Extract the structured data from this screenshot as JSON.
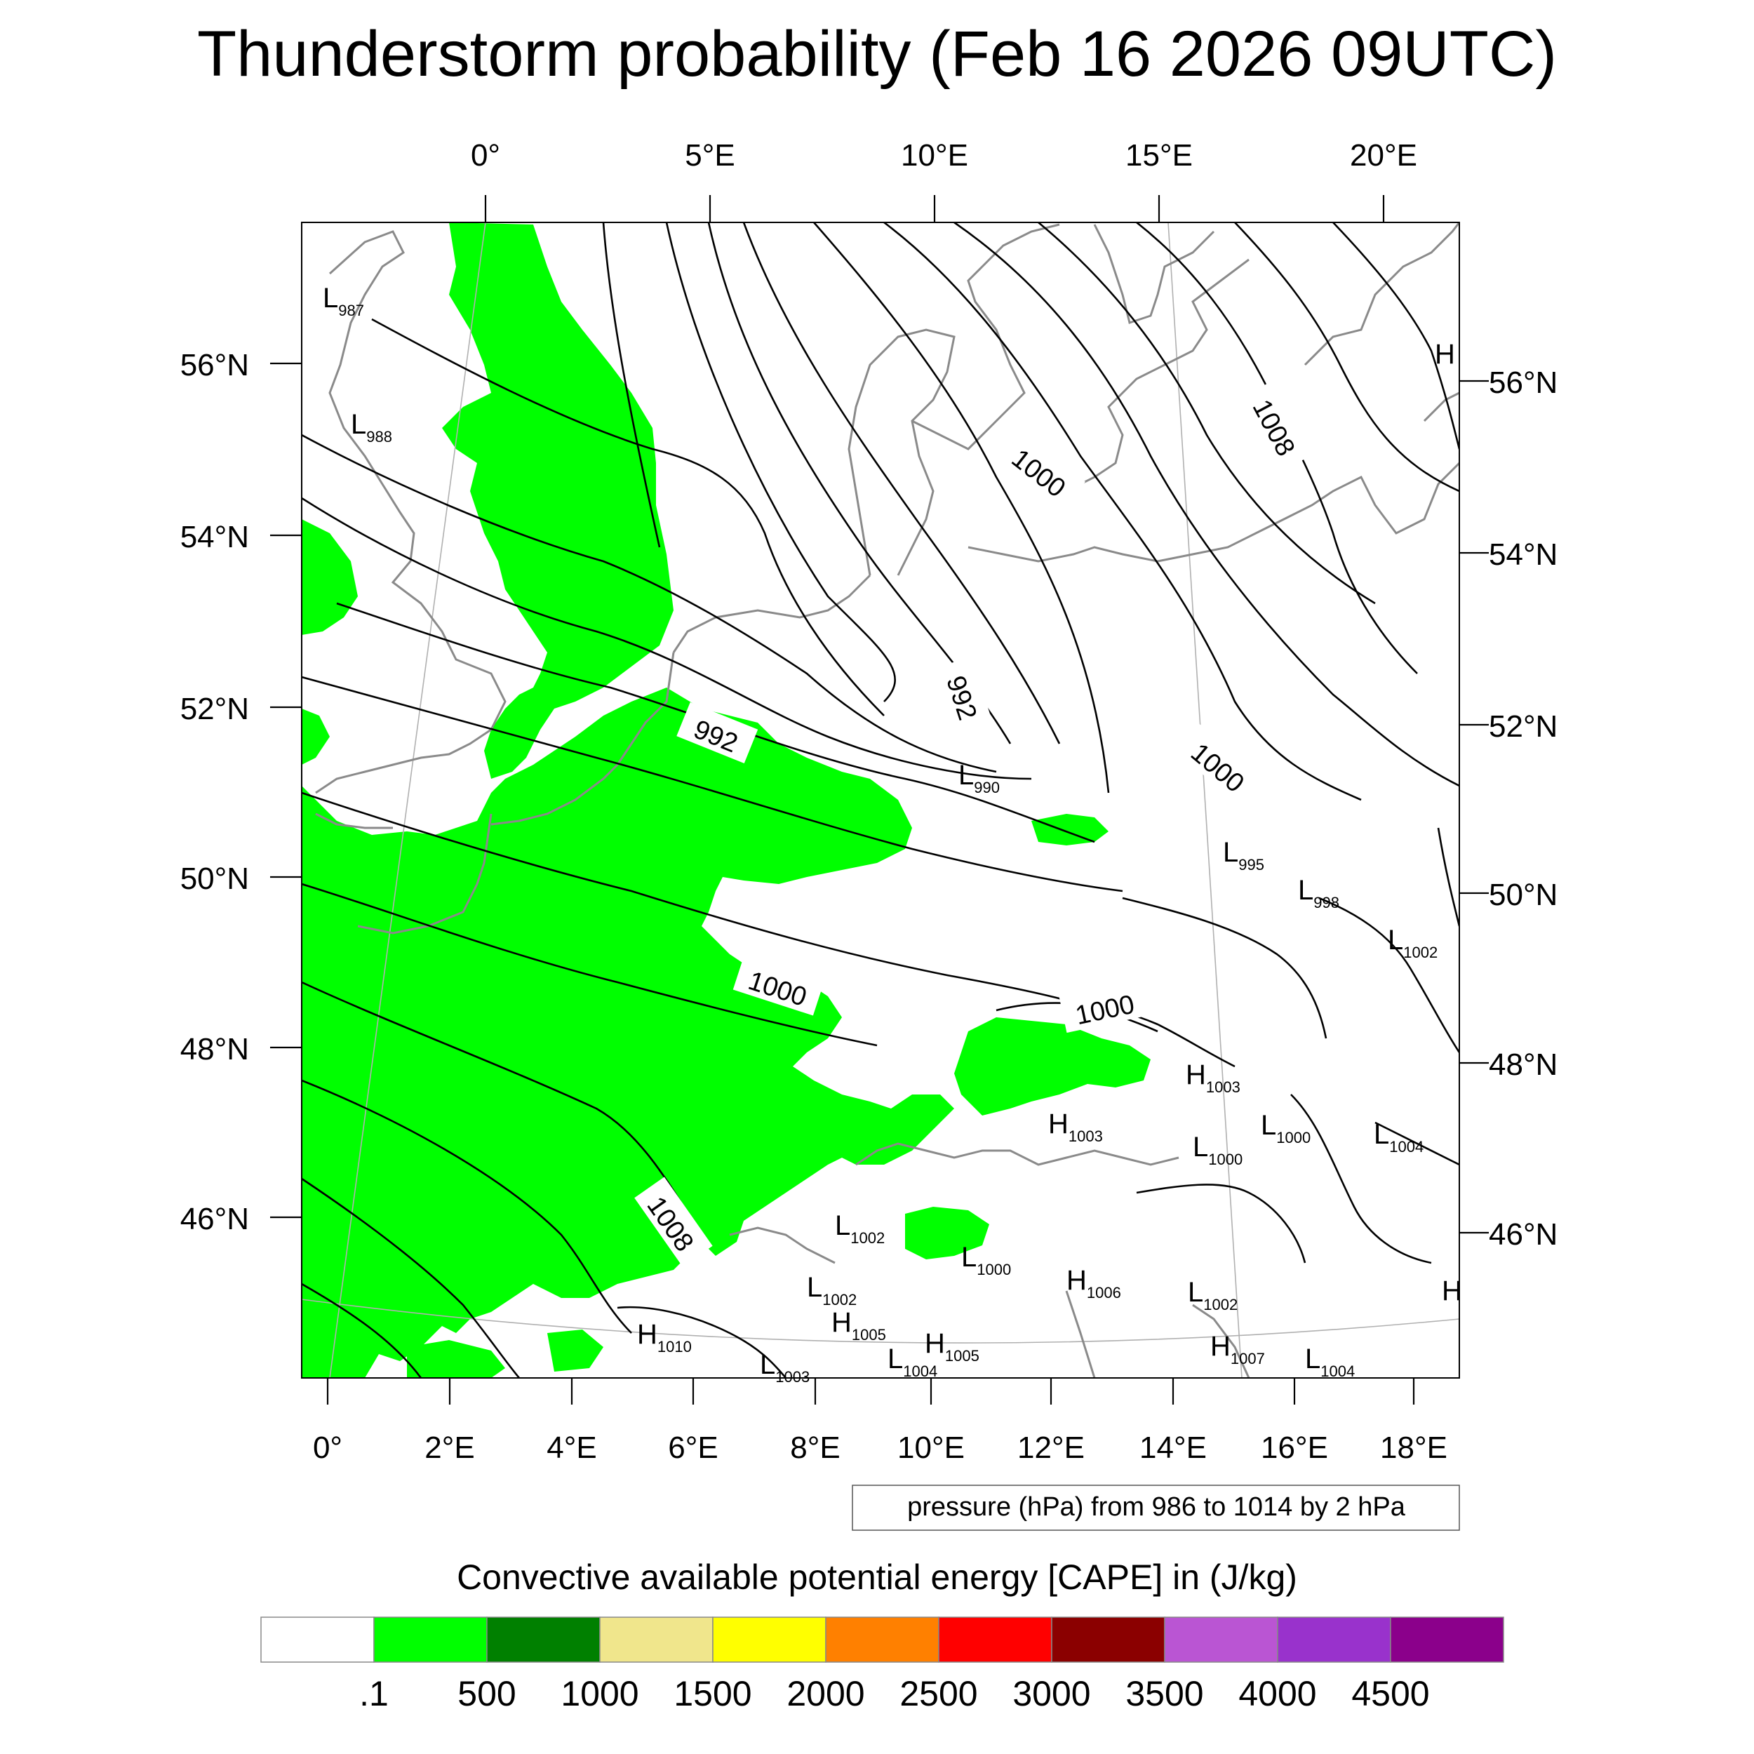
{
  "title": "Thunderstorm probability (Feb 16 2026 09UTC)",
  "top_lon_labels": [
    "0°",
    "5°E",
    "10°E",
    "15°E",
    "20°E"
  ],
  "bottom_lon_labels": [
    "0°",
    "2°E",
    "4°E",
    "6°E",
    "8°E",
    "10°E",
    "12°E",
    "14°E",
    "16°E",
    "18°E"
  ],
  "left_lat_labels": [
    "56°N",
    "54°N",
    "52°N",
    "50°N",
    "48°N",
    "46°N"
  ],
  "right_lat_labels": [
    "56°N",
    "54°N",
    "52°N",
    "50°N",
    "48°N",
    "46°N"
  ],
  "isobar_labels": [
    "992",
    "992",
    "1000",
    "1000",
    "1000",
    "1000",
    "1008",
    "1008"
  ],
  "pressure_centers": [
    {
      "type": "L",
      "value": "987"
    },
    {
      "type": "L",
      "value": "988"
    },
    {
      "type": "L",
      "value": "990"
    },
    {
      "type": "L",
      "value": "995"
    },
    {
      "type": "L",
      "value": "998"
    },
    {
      "type": "L",
      "value": "1002"
    },
    {
      "type": "H",
      "value": "1003"
    },
    {
      "type": "H",
      "value": "1003"
    },
    {
      "type": "L",
      "value": "1000"
    },
    {
      "type": "L",
      "value": "1000"
    },
    {
      "type": "L",
      "value": "1004"
    },
    {
      "type": "L",
      "value": "1002"
    },
    {
      "type": "L",
      "value": "1000"
    },
    {
      "type": "H",
      "value": "1006"
    },
    {
      "type": "L",
      "value": "1002"
    },
    {
      "type": "L",
      "value": "1002"
    },
    {
      "type": "H",
      "value": "1005"
    },
    {
      "type": "H",
      "value": "1005"
    },
    {
      "type": "H",
      "value": "1010"
    },
    {
      "type": "L",
      "value": "1003"
    },
    {
      "type": "L",
      "value": "1004"
    },
    {
      "type": "H",
      "value": "1007"
    },
    {
      "type": "L",
      "value": "1004"
    }
  ],
  "edge_markers": [
    "H",
    "H"
  ],
  "contour_info": "pressure (hPa) from 986 to 1014 by 2 hPa",
  "colorbar": {
    "title": "Convective available potential energy [CAPE] in (J/kg)",
    "labels": [
      ".1",
      "500",
      "1000",
      "1500",
      "2000",
      "2500",
      "3000",
      "3500",
      "4000",
      "4500"
    ],
    "colors": [
      "#ffffff",
      "#00ff00",
      "#008000",
      "#f0e68c",
      "#ffff00",
      "#ff8000",
      "#ff0000",
      "#8b0000",
      "#ba55d3",
      "#9932cc",
      "#8b008b"
    ]
  },
  "cape_fill_color": "#00ff00"
}
